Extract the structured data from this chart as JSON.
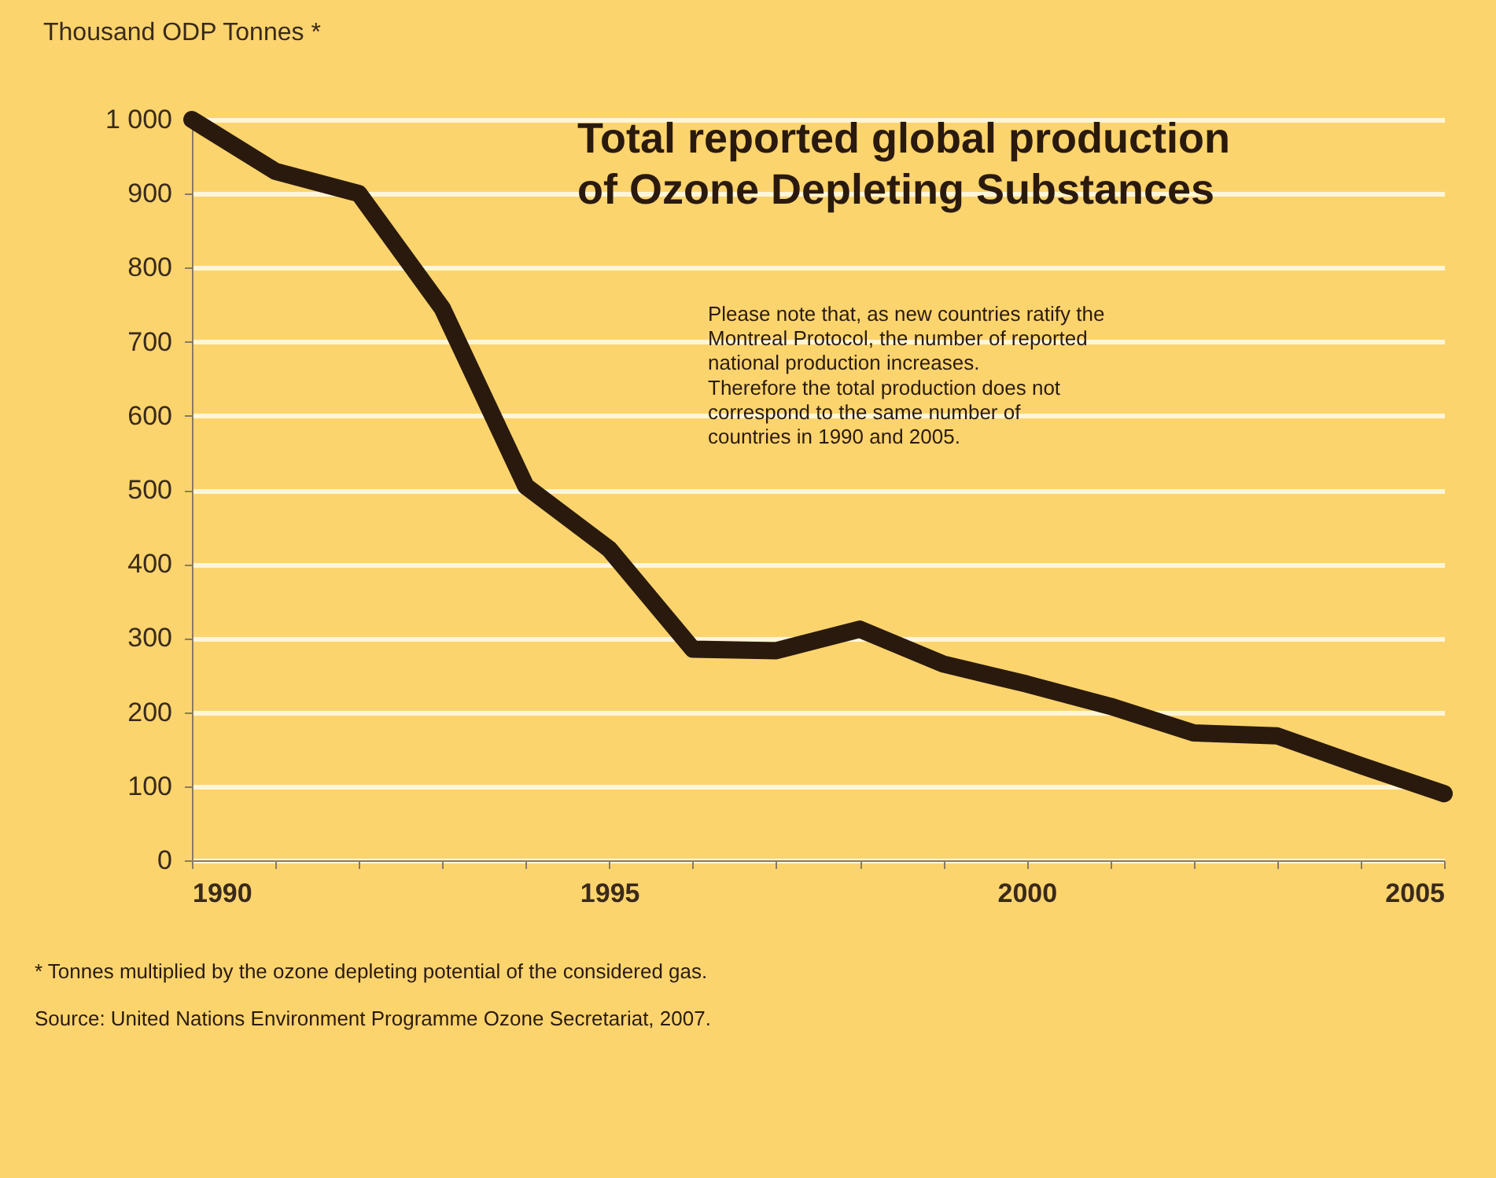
{
  "chart_data": {
    "type": "line",
    "title": "Total reported global production\nof Ozone Depleting Substances",
    "ylabel": "Thousand ODP Tonnes *",
    "x": [
      1990,
      1991,
      1992,
      1993,
      1994,
      1995,
      1996,
      1997,
      1998,
      1999,
      2000,
      2001,
      2002,
      2003,
      2004,
      2005
    ],
    "series": [
      {
        "color": "#2a1a0e",
        "values": [
          1000,
          930,
          900,
          745,
          505,
          420,
          285,
          283,
          312,
          265,
          238,
          208,
          172,
          168,
          128,
          90
        ]
      }
    ],
    "xlim": [
      1990,
      2005
    ],
    "xticks": [
      1990,
      {
        "value": 1991,
        "label": null
      },
      {
        "value": 1992,
        "label": null
      },
      {
        "value": 1993,
        "label": null
      },
      {
        "value": 1994,
        "label": null
      },
      1995,
      {
        "value": 1996,
        "label": null
      },
      {
        "value": 1997,
        "label": null
      },
      {
        "value": 1998,
        "label": null
      },
      {
        "value": 1999,
        "label": null
      },
      2000,
      {
        "value": 2001,
        "label": null
      },
      {
        "value": 2002,
        "label": null
      },
      {
        "value": 2003,
        "label": null
      },
      {
        "value": 2004,
        "label": null
      },
      2005
    ],
    "ylim": [
      0,
      1000
    ],
    "yticks": [
      0,
      100,
      200,
      300,
      400,
      500,
      600,
      700,
      800,
      900,
      {
        "value": 1000,
        "label": "1 000"
      }
    ],
    "grid": "y",
    "line_style": "solid",
    "annotations": [
      "Please note that, as new countries ratify the\nMontreal Protocol, the number of reported\nnational production increases.\nTherefore the total production does not\ncorrespond to the same number of\ncountries in 1990 and 2005.",
      "* Tonnes multiplied by the ozone depleting potential of the considered gas.",
      "Source: United Nations Environment Programme Ozone Secretariat, 2007."
    ]
  }
}
